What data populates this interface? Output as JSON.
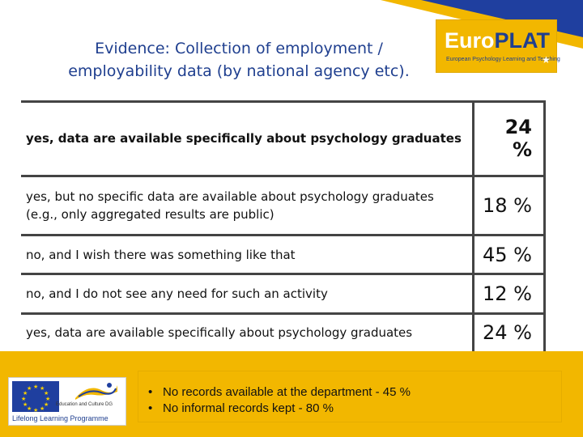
{
  "header": {
    "title_line1": "Evidence: Collection of employment /",
    "title_line2": "employability data (by national agency etc).",
    "logo": {
      "text_euro": "Euro",
      "text_plat": "PLAT",
      "subtitle": "European Psychology Learning and Teaching"
    }
  },
  "results": {
    "rows": [
      {
        "label": "yes, data are available specifically about psychology graduates",
        "value": "24 %",
        "bold": true
      },
      {
        "label": "yes, but no specific data are available about psychology graduates (e.g., only aggregated results are public)",
        "value": "18 %",
        "bold": false
      },
      {
        "label": "no, and I wish there was something like that",
        "value": "45 %",
        "bold": false
      },
      {
        "label": "no, and I do not see any need for such an activity",
        "value": "12 %",
        "bold": false
      },
      {
        "label": "yes, data are available specifically about psychology graduates",
        "value": "24 %",
        "bold": false
      }
    ]
  },
  "footer": {
    "badge": {
      "education_label": "Education and Culture DG",
      "programme_label": "Lifelong Learning Programme"
    },
    "notes": [
      "No records available at the department - 45 %",
      "No informal records kept - 80 %"
    ]
  },
  "colors": {
    "accent_yellow": "#f2b700",
    "title_blue": "#1f3f8f",
    "border": "#444444"
  }
}
